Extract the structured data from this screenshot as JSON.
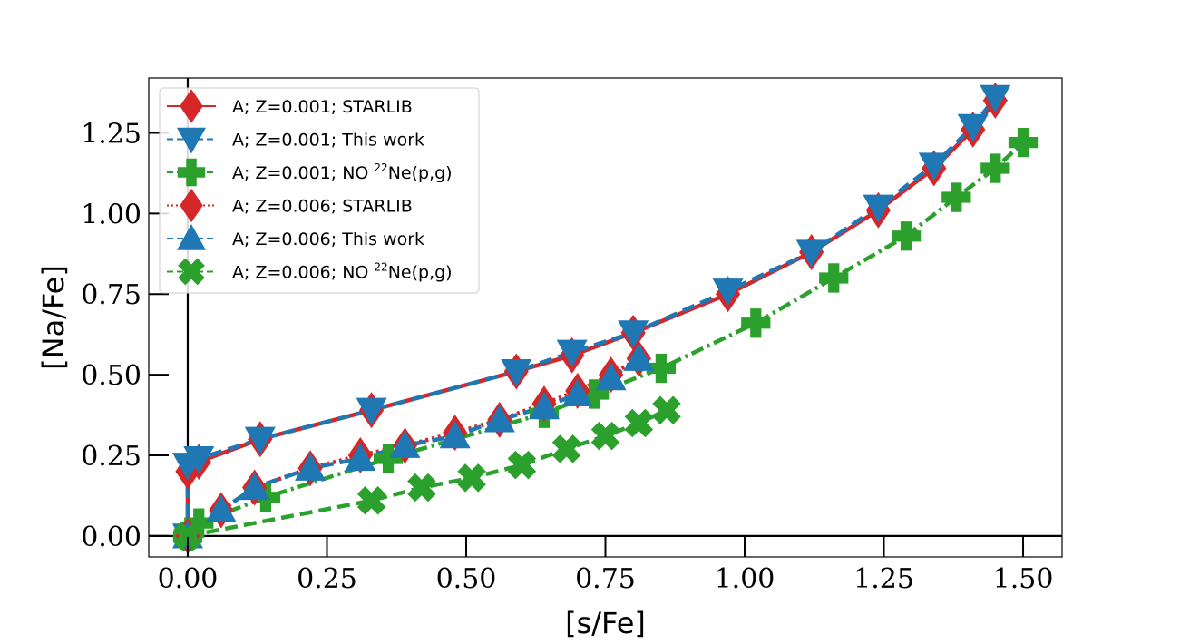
{
  "chart_data": {
    "type": "line",
    "title": "",
    "xlabel": "[s/Fe]",
    "ylabel": "[Na/Fe]",
    "xlim": [
      -0.07,
      1.57
    ],
    "ylim": [
      -0.065,
      1.42
    ],
    "xticks": [
      0.0,
      0.25,
      0.5,
      0.75,
      1.0,
      1.25,
      1.5
    ],
    "xtick_labels": [
      "0.00",
      "0.25",
      "0.50",
      "0.75",
      "1.00",
      "1.25",
      "1.50"
    ],
    "yticks": [
      0.0,
      0.25,
      0.5,
      0.75,
      1.0,
      1.25
    ],
    "ytick_labels": [
      "0.00",
      "0.25",
      "0.50",
      "0.75",
      "1.00",
      "1.25"
    ],
    "grid": false,
    "zero_lines": true,
    "legend_position": "upper-left",
    "series": [
      {
        "name": "A; Z=0.001; STARLIB",
        "legend_main": "A; Z=0.001; STARLIB",
        "legend_sup": "",
        "legend_tail": "",
        "color": "#d62728",
        "marker": "diamond",
        "linestyle": "solid",
        "x": [
          0.0,
          0.0,
          0.02,
          0.13,
          0.33,
          0.59,
          0.69,
          0.8,
          0.97,
          1.12,
          1.24,
          1.34,
          1.41,
          1.45
        ],
        "y": [
          0.0,
          0.2,
          0.23,
          0.3,
          0.39,
          0.51,
          0.56,
          0.63,
          0.75,
          0.88,
          1.01,
          1.14,
          1.26,
          1.35
        ]
      },
      {
        "name": "A; Z=0.001; This work",
        "legend_main": "A; Z=0.001; This work",
        "legend_sup": "",
        "legend_tail": "",
        "color": "#1f77b4",
        "marker": "triangle-down",
        "linestyle": "dashed",
        "x": [
          0.0,
          0.0,
          0.02,
          0.13,
          0.33,
          0.59,
          0.69,
          0.8,
          0.97,
          1.12,
          1.24,
          1.34,
          1.41,
          1.45
        ],
        "y": [
          0.0,
          0.22,
          0.24,
          0.3,
          0.39,
          0.51,
          0.57,
          0.63,
          0.76,
          0.88,
          1.02,
          1.15,
          1.27,
          1.36
        ]
      },
      {
        "name": "A; Z=0.001; NO 22Ne(p,g)",
        "legend_main": "A; Z=0.001; NO ",
        "legend_sup": "22",
        "legend_tail": "Ne(p,g)",
        "color": "#2ca02c",
        "marker": "plus",
        "linestyle": "dashdot",
        "x": [
          0.0,
          0.02,
          0.14,
          0.36,
          0.64,
          0.73,
          0.85,
          1.02,
          1.16,
          1.29,
          1.38,
          1.45,
          1.5
        ],
        "y": [
          0.0,
          0.04,
          0.12,
          0.24,
          0.38,
          0.44,
          0.52,
          0.66,
          0.8,
          0.93,
          1.05,
          1.14,
          1.22
        ]
      },
      {
        "name": "A; Z=0.006; STARLIB",
        "legend_main": "A; Z=0.006; STARLIB",
        "legend_sup": "",
        "legend_tail": "",
        "color": "#d62728",
        "marker": "diamond",
        "linestyle": "dotted",
        "x": [
          0.0,
          0.06,
          0.12,
          0.22,
          0.31,
          0.39,
          0.48,
          0.56,
          0.64,
          0.7,
          0.76,
          0.81
        ],
        "y": [
          0.0,
          0.08,
          0.15,
          0.21,
          0.25,
          0.28,
          0.32,
          0.36,
          0.41,
          0.45,
          0.5,
          0.55
        ]
      },
      {
        "name": "A; Z=0.006; This work",
        "legend_main": "A; Z=0.006; This work",
        "legend_sup": "",
        "legend_tail": "",
        "color": "#1f77b4",
        "marker": "triangle-up",
        "linestyle": "dashed",
        "x": [
          0.0,
          0.06,
          0.12,
          0.22,
          0.31,
          0.39,
          0.48,
          0.56,
          0.64,
          0.7,
          0.76,
          0.81
        ],
        "y": [
          0.0,
          0.08,
          0.15,
          0.21,
          0.24,
          0.28,
          0.31,
          0.36,
          0.4,
          0.44,
          0.49,
          0.55
        ]
      },
      {
        "name": "A; Z=0.006; NO 22Ne(p,g)",
        "legend_main": "A; Z=0.006; NO ",
        "legend_sup": "22",
        "legend_tail": "Ne(p,g)",
        "color": "#2ca02c",
        "marker": "x",
        "linestyle": "dashed",
        "x": [
          0.0,
          0.33,
          0.42,
          0.51,
          0.6,
          0.68,
          0.75,
          0.81,
          0.86
        ],
        "y": [
          0.0,
          0.11,
          0.15,
          0.18,
          0.22,
          0.27,
          0.31,
          0.35,
          0.39
        ]
      }
    ]
  }
}
